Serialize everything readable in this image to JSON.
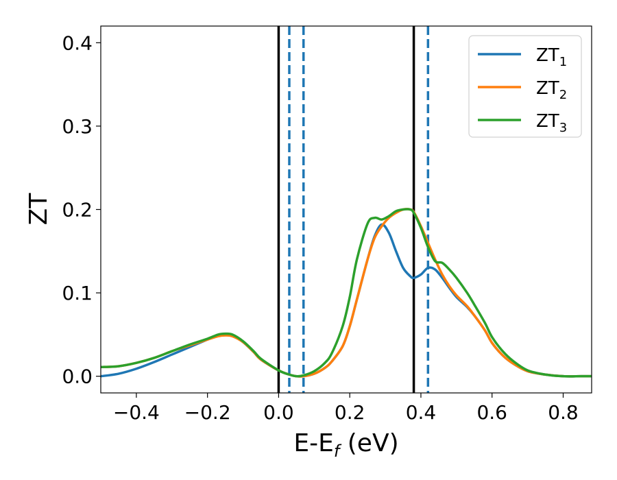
{
  "chart_data": {
    "type": "line",
    "xlabel": "E-E",
    "xlabel_sub": "f",
    "xlabel_unit": " (eV)",
    "ylabel": "ZT",
    "xlim": [
      -0.5,
      0.88
    ],
    "ylim": [
      -0.02,
      0.42
    ],
    "x_ticks": [
      {
        "value": -0.4,
        "label": "−0.4"
      },
      {
        "value": -0.2,
        "label": "−0.2"
      },
      {
        "value": 0.0,
        "label": "0.0"
      },
      {
        "value": 0.2,
        "label": "0.2"
      },
      {
        "value": 0.4,
        "label": "0.4"
      },
      {
        "value": 0.6,
        "label": "0.6"
      },
      {
        "value": 0.8,
        "label": "0.8"
      }
    ],
    "y_ticks": [
      {
        "value": 0.0,
        "label": "0.0"
      },
      {
        "value": 0.1,
        "label": "0.1"
      },
      {
        "value": 0.2,
        "label": "0.2"
      },
      {
        "value": 0.3,
        "label": "0.3"
      },
      {
        "value": 0.4,
        "label": "0.4"
      }
    ],
    "grid": false,
    "legend_position": "top-right",
    "series": [
      {
        "name": "ZT",
        "sub": "1",
        "color": "#1f77b4",
        "x": [
          -0.5,
          -0.45,
          -0.4,
          -0.35,
          -0.3,
          -0.25,
          -0.2,
          -0.17,
          -0.15,
          -0.13,
          -0.1,
          -0.07,
          -0.05,
          0.0,
          0.03,
          0.05,
          0.07,
          0.1,
          0.13,
          0.15,
          0.18,
          0.2,
          0.22,
          0.25,
          0.27,
          0.29,
          0.31,
          0.33,
          0.35,
          0.37,
          0.38,
          0.4,
          0.42,
          0.44,
          0.46,
          0.48,
          0.5,
          0.53,
          0.55,
          0.58,
          0.6,
          0.63,
          0.66,
          0.7,
          0.75,
          0.8,
          0.85,
          0.88
        ],
        "y": [
          0.0,
          0.003,
          0.009,
          0.017,
          0.026,
          0.035,
          0.044,
          0.049,
          0.05,
          0.049,
          0.041,
          0.029,
          0.02,
          0.007,
          0.002,
          0.0,
          0.0,
          0.003,
          0.01,
          0.018,
          0.036,
          0.06,
          0.092,
          0.14,
          0.168,
          0.182,
          0.172,
          0.15,
          0.13,
          0.12,
          0.118,
          0.122,
          0.13,
          0.128,
          0.118,
          0.106,
          0.095,
          0.083,
          0.073,
          0.055,
          0.04,
          0.025,
          0.015,
          0.006,
          0.002,
          0.0,
          0.0,
          0.0
        ]
      },
      {
        "name": "ZT",
        "sub": "2",
        "color": "#ff7f0e",
        "x": [
          -0.5,
          -0.45,
          -0.4,
          -0.35,
          -0.3,
          -0.25,
          -0.2,
          -0.17,
          -0.15,
          -0.13,
          -0.1,
          -0.07,
          -0.05,
          0.0,
          0.03,
          0.05,
          0.07,
          0.1,
          0.13,
          0.15,
          0.18,
          0.2,
          0.22,
          0.25,
          0.27,
          0.29,
          0.31,
          0.33,
          0.35,
          0.37,
          0.38,
          0.4,
          0.42,
          0.44,
          0.46,
          0.48,
          0.5,
          0.53,
          0.55,
          0.58,
          0.6,
          0.63,
          0.66,
          0.7,
          0.75,
          0.8,
          0.85,
          0.88
        ],
        "y": [
          0.011,
          0.012,
          0.016,
          0.022,
          0.03,
          0.037,
          0.044,
          0.048,
          0.049,
          0.048,
          0.041,
          0.029,
          0.02,
          0.007,
          0.002,
          0.0,
          0.0,
          0.003,
          0.01,
          0.018,
          0.036,
          0.06,
          0.092,
          0.14,
          0.166,
          0.18,
          0.19,
          0.196,
          0.2,
          0.2,
          0.197,
          0.18,
          0.16,
          0.14,
          0.122,
          0.108,
          0.097,
          0.084,
          0.073,
          0.055,
          0.04,
          0.025,
          0.015,
          0.006,
          0.002,
          0.0,
          0.0,
          0.0
        ]
      },
      {
        "name": "ZT",
        "sub": "3",
        "color": "#2ca02c",
        "x": [
          -0.5,
          -0.45,
          -0.4,
          -0.35,
          -0.3,
          -0.25,
          -0.2,
          -0.17,
          -0.15,
          -0.13,
          -0.1,
          -0.07,
          -0.05,
          0.0,
          0.03,
          0.05,
          0.07,
          0.1,
          0.13,
          0.15,
          0.18,
          0.2,
          0.22,
          0.25,
          0.27,
          0.29,
          0.31,
          0.33,
          0.35,
          0.37,
          0.38,
          0.4,
          0.42,
          0.44,
          0.46,
          0.48,
          0.5,
          0.53,
          0.55,
          0.58,
          0.6,
          0.63,
          0.66,
          0.7,
          0.75,
          0.8,
          0.85,
          0.88
        ],
        "y": [
          0.011,
          0.012,
          0.016,
          0.022,
          0.03,
          0.038,
          0.045,
          0.05,
          0.051,
          0.05,
          0.042,
          0.03,
          0.021,
          0.007,
          0.002,
          0.0,
          0.001,
          0.006,
          0.016,
          0.028,
          0.06,
          0.095,
          0.14,
          0.183,
          0.19,
          0.188,
          0.192,
          0.198,
          0.2,
          0.2,
          0.196,
          0.178,
          0.155,
          0.138,
          0.136,
          0.128,
          0.118,
          0.1,
          0.086,
          0.064,
          0.047,
          0.03,
          0.018,
          0.007,
          0.002,
          0.0,
          0.0,
          0.0
        ]
      }
    ],
    "vertical_lines": [
      {
        "x": 0.0,
        "style": "solid",
        "color": "#000000"
      },
      {
        "x": 0.38,
        "style": "solid",
        "color": "#000000"
      },
      {
        "x": 0.03,
        "style": "dashed",
        "color": "#1f77b4"
      },
      {
        "x": 0.07,
        "style": "dashed",
        "color": "#1f77b4"
      },
      {
        "x": 0.42,
        "style": "dashed",
        "color": "#1f77b4"
      }
    ]
  }
}
